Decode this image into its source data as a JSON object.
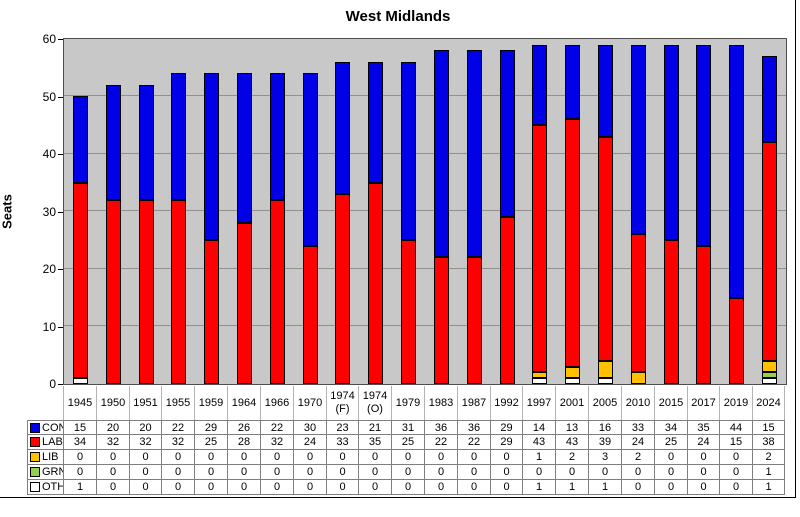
{
  "title": "West Midlands",
  "y_axis": {
    "label": "Seats",
    "ticks": [
      0,
      10,
      20,
      30,
      40,
      50,
      60
    ]
  },
  "colors": {
    "plot_background": "#c8c8c8",
    "gridline": "#909090",
    "bar_border": "#000000"
  },
  "chart_data": {
    "type": "bar",
    "stacked": true,
    "title": "West Midlands",
    "xlabel": "",
    "ylabel": "Seats",
    "ylim": [
      0,
      60
    ],
    "grid": true,
    "gridline_step": 10,
    "legend_position": "table-left",
    "categories": [
      "1945",
      "1950",
      "1951",
      "1955",
      "1959",
      "1964",
      "1966",
      "1970",
      "1974 (F)",
      "1974 (O)",
      "1979",
      "1983",
      "1987",
      "1992",
      "1997",
      "2001",
      "2005",
      "2010",
      "2015",
      "2017",
      "2019",
      "2024"
    ],
    "series": [
      {
        "name": "CON",
        "color": "#0000e6",
        "values": [
          15,
          20,
          20,
          22,
          29,
          26,
          22,
          30,
          23,
          21,
          31,
          36,
          36,
          29,
          14,
          13,
          16,
          33,
          34,
          35,
          44,
          15
        ]
      },
      {
        "name": "LAB",
        "color": "#ff0000",
        "values": [
          34,
          32,
          32,
          32,
          25,
          28,
          32,
          24,
          33,
          35,
          25,
          22,
          22,
          29,
          43,
          43,
          39,
          24,
          25,
          24,
          15,
          38
        ]
      },
      {
        "name": "LIB",
        "color": "#ffc000",
        "values": [
          0,
          0,
          0,
          0,
          0,
          0,
          0,
          0,
          0,
          0,
          0,
          0,
          0,
          0,
          1,
          2,
          3,
          2,
          0,
          0,
          0,
          2
        ]
      },
      {
        "name": "GRN",
        "color": "#92d050",
        "values": [
          0,
          0,
          0,
          0,
          0,
          0,
          0,
          0,
          0,
          0,
          0,
          0,
          0,
          0,
          0,
          0,
          0,
          0,
          0,
          0,
          0,
          1
        ]
      },
      {
        "name": "OTH",
        "color": "#ffffff",
        "values": [
          1,
          0,
          0,
          0,
          0,
          0,
          0,
          0,
          0,
          0,
          0,
          0,
          0,
          0,
          1,
          1,
          1,
          0,
          0,
          0,
          0,
          1
        ]
      }
    ],
    "stack_order_bottom_to_top": [
      "OTH",
      "GRN",
      "LIB",
      "LAB",
      "CON"
    ]
  }
}
